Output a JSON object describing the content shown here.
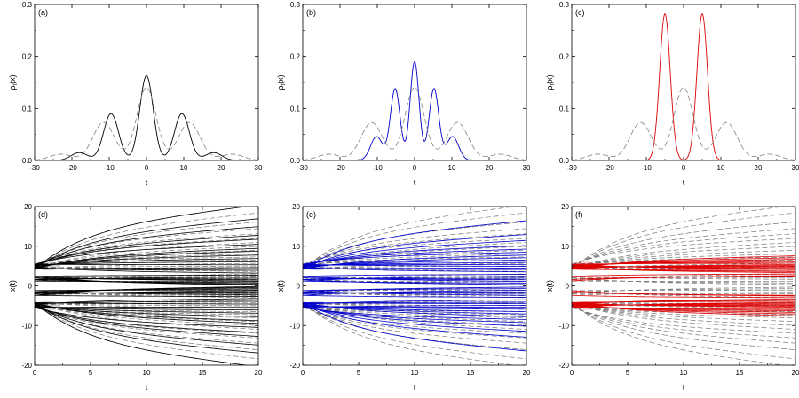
{
  "chart_data": [
    {
      "panel": "a",
      "label": "(a)",
      "type": "line",
      "xlabel": "t",
      "ylabel": "ρ_t(x)",
      "ylabel_main": "ρ",
      "ylabel_sub": "t",
      "ylabel_arg": "(x)",
      "xlim": [
        -30,
        30
      ],
      "ylim": [
        0.0,
        0.3
      ],
      "xticks": [
        "-30",
        "-20",
        "-10",
        "0",
        "10",
        "20",
        "30"
      ],
      "yticks": [
        "0.0",
        "0.1",
        "0.2",
        "0.3"
      ],
      "series": [
        {
          "name": "solid",
          "color": "#000000",
          "style": "solid",
          "peaks": [
            [
              0,
              0.163,
              1.8
            ],
            [
              -9.5,
              0.09,
              2.0
            ],
            [
              9.5,
              0.09,
              2.0
            ],
            [
              -18,
              0.015,
              2.2
            ],
            [
              18,
              0.015,
              2.2
            ]
          ]
        },
        {
          "name": "dashed",
          "color": "#8c8c8c",
          "style": "dashed",
          "peaks": [
            [
              0,
              0.14,
              2.6
            ],
            [
              -11.5,
              0.073,
              2.9
            ],
            [
              11.5,
              0.073,
              2.9
            ],
            [
              -23,
              0.012,
              3.0
            ],
            [
              23,
              0.012,
              3.0
            ]
          ]
        }
      ]
    },
    {
      "panel": "b",
      "label": "(b)",
      "type": "line",
      "xlabel": "t",
      "ylabel": "ρ_t(x)",
      "ylabel_main": "ρ",
      "ylabel_sub": "t",
      "ylabel_arg": "(x)",
      "xlim": [
        -30,
        30
      ],
      "ylim": [
        0.0,
        0.3
      ],
      "xticks": [
        "-30",
        "-20",
        "-10",
        "0",
        "10",
        "20",
        "30"
      ],
      "yticks": [
        "0.0",
        "0.1",
        "0.2",
        "0.3"
      ],
      "series": [
        {
          "name": "solid",
          "color": "#0000cc",
          "style": "solid",
          "peaks": [
            [
              0,
              0.19,
              1.2
            ],
            [
              -5.2,
              0.138,
              1.3
            ],
            [
              5.2,
              0.138,
              1.3
            ],
            [
              -10.2,
              0.046,
              1.6
            ],
            [
              10.2,
              0.046,
              1.6
            ]
          ]
        },
        {
          "name": "dashed",
          "color": "#8c8c8c",
          "style": "dashed",
          "peaks": [
            [
              0,
              0.14,
              2.6
            ],
            [
              -11.5,
              0.073,
              2.9
            ],
            [
              11.5,
              0.073,
              2.9
            ],
            [
              -23,
              0.012,
              3.0
            ],
            [
              23,
              0.012,
              3.0
            ]
          ]
        }
      ]
    },
    {
      "panel": "c",
      "label": "(c)",
      "type": "line",
      "xlabel": "t",
      "ylabel": "ρ_t(x)",
      "ylabel_main": "ρ",
      "ylabel_sub": "t",
      "ylabel_arg": "(x)",
      "xlim": [
        -30,
        30
      ],
      "ylim": [
        0.0,
        0.3
      ],
      "xticks": [
        "-30",
        "-20",
        "-10",
        "0",
        "10",
        "20",
        "30"
      ],
      "yticks": [
        "0.0",
        "0.1",
        "0.2",
        "0.3"
      ],
      "series": [
        {
          "name": "solid",
          "color": "#dd0000",
          "style": "solid",
          "peaks": [
            [
              -5,
              0.282,
              1.42
            ],
            [
              5,
              0.282,
              1.42
            ]
          ]
        },
        {
          "name": "dashed",
          "color": "#8c8c8c",
          "style": "dashed",
          "peaks": [
            [
              0,
              0.14,
              2.6
            ],
            [
              -11.5,
              0.073,
              2.9
            ],
            [
              11.5,
              0.073,
              2.9
            ],
            [
              -23,
              0.012,
              3.0
            ],
            [
              23,
              0.012,
              3.0
            ]
          ]
        }
      ]
    },
    {
      "panel": "d",
      "label": "(d)",
      "type": "line",
      "xlabel": "t",
      "ylabel": "x(t)",
      "xlim": [
        0,
        20
      ],
      "ylim": [
        -20,
        20
      ],
      "xticks": [
        "0",
        "5",
        "10",
        "15",
        "20"
      ],
      "yticks": [
        "-20",
        "-10",
        "0",
        "10",
        "20"
      ],
      "trajectories": {
        "color": "#000000",
        "dashed_color": "#777777",
        "solid_final": [
          20.5,
          17,
          15,
          12.8,
          11.8,
          10.5,
          9.5,
          8.8,
          7.8,
          6.9,
          6.1,
          5.3,
          4.6,
          3.9,
          3.2,
          2.7,
          2.3,
          1.9,
          1.5,
          1.2,
          1.0,
          0.7,
          0.4,
          0.15
        ],
        "dashed_final": [
          20.5,
          18.5,
          16.2,
          14.5,
          13.2,
          12,
          11,
          10,
          9,
          8.1,
          7.3,
          6.5,
          5.7,
          5,
          4.3,
          3.6,
          3,
          2.5,
          2,
          1.6,
          1.1,
          0.7,
          0.3
        ]
      }
    },
    {
      "panel": "e",
      "label": "(e)",
      "type": "line",
      "xlabel": "t",
      "ylabel": "x(t)",
      "xlim": [
        0,
        20
      ],
      "ylim": [
        -20,
        20
      ],
      "xticks": [
        "0",
        "5",
        "10",
        "15",
        "20"
      ],
      "yticks": [
        "-20",
        "-10",
        "0",
        "10",
        "20"
      ],
      "trajectories": {
        "color": "#0000cc",
        "dashed_color": "#777777",
        "solid_final": [
          16.5,
          13,
          11.5,
          10.2,
          9.3,
          8.5,
          7.8,
          7.1,
          6.5,
          5.9,
          5.4,
          4.9,
          4.5,
          4.1,
          3.5,
          2.9,
          2.4,
          1.9,
          1.5,
          1.1,
          0.7,
          0.3
        ],
        "dashed_final": [
          20.5,
          18.5,
          16.2,
          14.5,
          13.2,
          12,
          11,
          10,
          9,
          8.1,
          7.3,
          6.5,
          5.7,
          5,
          4.3,
          3.6,
          3,
          2.5,
          2,
          1.6,
          1.1,
          0.7,
          0.3
        ]
      }
    },
    {
      "panel": "f",
      "label": "(f)",
      "type": "line",
      "xlabel": "t",
      "ylabel": "x(t)",
      "xlim": [
        0,
        20
      ],
      "ylim": [
        -20,
        20
      ],
      "xticks": [
        "0",
        "5",
        "10",
        "15",
        "20"
      ],
      "yticks": [
        "-20",
        "-10",
        "0",
        "10",
        "20"
      ],
      "trajectories": {
        "color": "#dd0000",
        "dashed_color": "#777777",
        "solid_final": [
          7.6,
          7.1,
          6.7,
          6.3,
          6.0,
          5.7,
          5.4,
          5.15,
          4.9,
          4.65,
          4.4,
          4.15,
          3.9,
          3.6,
          3.3,
          3.0,
          2.6,
          2.4
        ],
        "dashed_final": [
          20.5,
          18.5,
          16.2,
          14.5,
          13.2,
          12,
          11,
          10,
          9,
          8.1,
          7.3,
          6.5,
          5.7,
          5,
          4.3,
          3.6,
          3,
          2.5,
          2,
          1.6,
          1.1,
          0.7,
          0.3
        ]
      }
    }
  ]
}
